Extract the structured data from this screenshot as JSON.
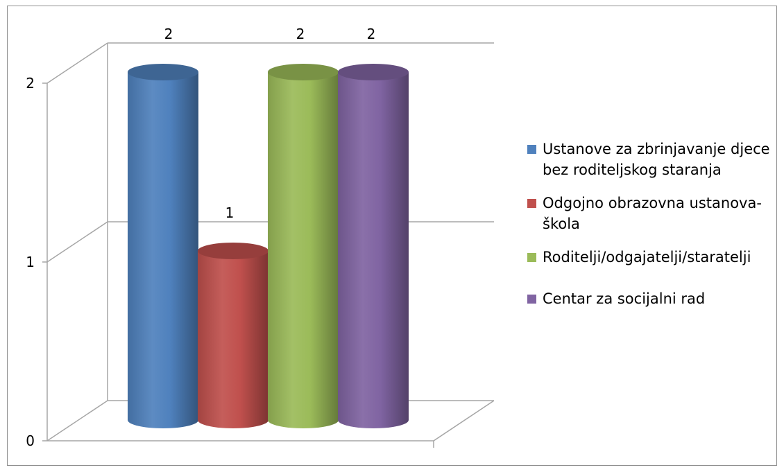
{
  "chart_data": {
    "type": "bar",
    "style": "3d-cylinder",
    "categories": [
      "Ustanove za zbrinjavanje djece bez roditeljskog staranja",
      "Odgojno obrazovna ustanova-škola",
      "Roditelji/odgajatelji/staratelji",
      "Centar za socijalni rad"
    ],
    "values": [
      2,
      1,
      2,
      2
    ],
    "colors": [
      "#4f81bd",
      "#c0504d",
      "#9bbb59",
      "#8064a2"
    ],
    "data_labels": [
      "2",
      "1",
      "2",
      "2"
    ],
    "title": "",
    "xlabel": "",
    "ylabel": "",
    "ylim": [
      0,
      2
    ],
    "yticks": [
      "0",
      "1",
      "2"
    ],
    "grid": true,
    "legend": {
      "position": "right",
      "entries": [
        {
          "line1": "Ustanove za zbrinjavanje djece",
          "line2": "bez roditeljskog staranja"
        },
        {
          "line1": "Odgojno obrazovna ustanova-",
          "line2": "škola"
        },
        {
          "line1": "Roditelji/odgajatelji/staratelji",
          "line2": ""
        },
        {
          "line1": "Centar za socijalni rad",
          "line2": ""
        }
      ]
    }
  }
}
